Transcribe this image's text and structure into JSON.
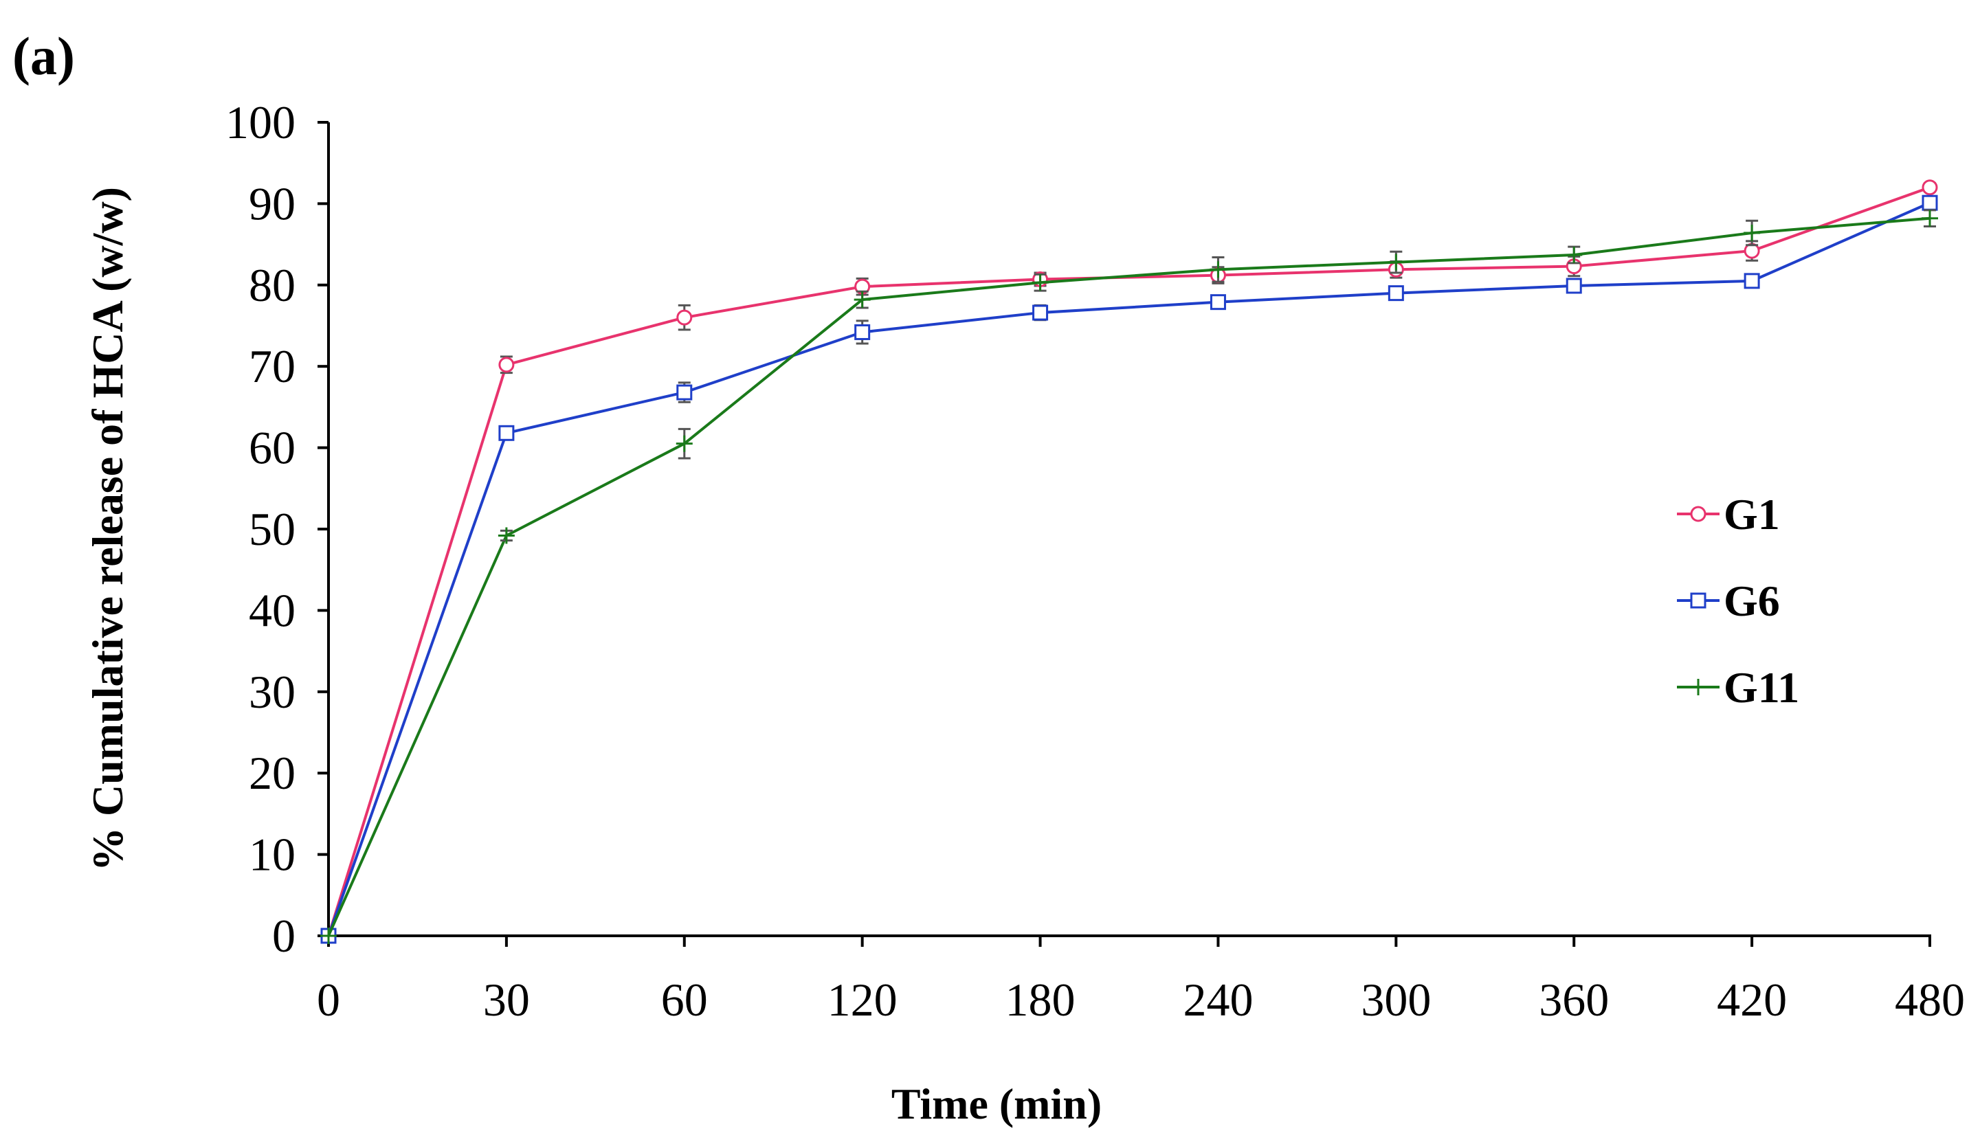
{
  "panel_label": "(a)",
  "chart_data": {
    "type": "line",
    "title": "",
    "xlabel": "Time (min)",
    "ylabel": "% Cumulative  release of  HCA (w/w)",
    "categories": [
      "0",
      "30",
      "60",
      "120",
      "180",
      "240",
      "300",
      "360",
      "420",
      "480"
    ],
    "yticks": [
      "0",
      "10",
      "20",
      "30",
      "40",
      "50",
      "60",
      "70",
      "80",
      "90",
      "100"
    ],
    "ylim": [
      0,
      100
    ],
    "grid": false,
    "legend_position": "right",
    "series": [
      {
        "name": "G1",
        "color": "#e8336d",
        "marker": "circle",
        "values": [
          0,
          70.2,
          76.0,
          79.8,
          80.7,
          81.2,
          81.9,
          82.3,
          84.2,
          92.0
        ],
        "errors": [
          0,
          1.0,
          1.5,
          1.0,
          0.8,
          1.0,
          1.0,
          1.2,
          1.2,
          0.5
        ]
      },
      {
        "name": "G6",
        "color": "#1f3fc9",
        "marker": "square",
        "values": [
          0,
          61.8,
          66.8,
          74.2,
          76.6,
          77.9,
          79.0,
          79.9,
          80.5,
          90.1
        ],
        "errors": [
          0,
          0.8,
          1.2,
          1.4,
          0.9,
          0.6,
          0.8,
          0.7,
          0.8,
          0.6
        ]
      },
      {
        "name": "G11",
        "color": "#1a7a1a",
        "marker": "plus",
        "values": [
          0,
          49.2,
          60.5,
          78.2,
          80.3,
          81.9,
          82.8,
          83.7,
          86.4,
          88.2
        ],
        "errors": [
          0,
          0.6,
          1.8,
          1.0,
          1.0,
          1.5,
          1.3,
          1.0,
          1.5,
          1.0
        ]
      }
    ]
  }
}
